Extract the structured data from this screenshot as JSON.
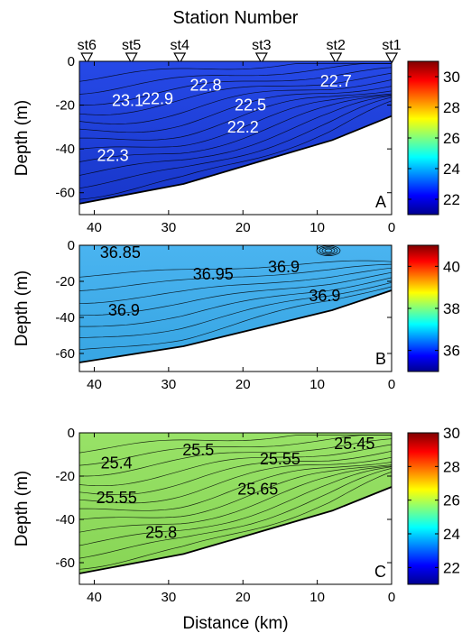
{
  "figure": {
    "top_label": "Station Number",
    "x_label": "Distance (km)"
  },
  "stations": [
    {
      "name": "st6",
      "distance": 41
    },
    {
      "name": "st5",
      "distance": 35
    },
    {
      "name": "st4",
      "distance": 28.5
    },
    {
      "name": "st3",
      "distance": 17.5
    },
    {
      "name": "st2",
      "distance": 7.5
    },
    {
      "name": "st1",
      "distance": 0
    }
  ],
  "chart_data": [
    {
      "type": "contour",
      "panel": "A",
      "ylabel": "Depth (m)",
      "xlim": [
        42,
        0
      ],
      "ylim": [
        -70,
        0
      ],
      "xticks": [
        40,
        30,
        20,
        10,
        0
      ],
      "yticks": [
        0,
        -20,
        -40,
        -60
      ],
      "bottom_profile": [
        [
          42,
          -65
        ],
        [
          28,
          -56
        ],
        [
          8,
          -36
        ],
        [
          0,
          -25
        ]
      ],
      "colorbar": {
        "min": 21,
        "max": 31,
        "ticks": [
          22,
          24,
          26,
          28,
          30
        ]
      },
      "fill_color": "#1b3fe6",
      "contour_labels": [
        {
          "text": "23.1",
          "x": 35.5,
          "y": -18
        },
        {
          "text": "22.9",
          "x": 31.5,
          "y": -17
        },
        {
          "text": "22.8",
          "x": 25,
          "y": -11
        },
        {
          "text": "22.7",
          "x": 7.5,
          "y": -9
        },
        {
          "text": "22.5",
          "x": 19,
          "y": -20
        },
        {
          "text": "22.2",
          "x": 20,
          "y": -30
        },
        {
          "text": "22.3",
          "x": 37.5,
          "y": -43
        }
      ]
    },
    {
      "type": "contour",
      "panel": "B",
      "ylabel": "Depth (m)",
      "xlim": [
        42,
        0
      ],
      "ylim": [
        -70,
        0
      ],
      "xticks": [
        40,
        30,
        20,
        10,
        0
      ],
      "yticks": [
        0,
        -20,
        -40,
        -60
      ],
      "bottom_profile": [
        [
          42,
          -65
        ],
        [
          28,
          -56
        ],
        [
          8,
          -36
        ],
        [
          0,
          -25
        ]
      ],
      "colorbar": {
        "min": 35,
        "max": 41,
        "ticks": [
          36,
          38,
          40
        ]
      },
      "fill_color": "#3aaeef",
      "contour_labels": [
        {
          "text": "36.85",
          "x": 36.5,
          "y": -4
        },
        {
          "text": "36.95",
          "x": 24,
          "y": -16
        },
        {
          "text": "36.9",
          "x": 14.5,
          "y": -12
        },
        {
          "text": "36.9",
          "x": 36,
          "y": -36
        },
        {
          "text": "36.9",
          "x": 9,
          "y": -28
        }
      ]
    },
    {
      "type": "contour",
      "panel": "C",
      "ylabel": "Depth (m)",
      "xlim": [
        42,
        0
      ],
      "ylim": [
        -70,
        0
      ],
      "xticks": [
        40,
        30,
        20,
        10,
        0
      ],
      "yticks": [
        0,
        -20,
        -40,
        -60
      ],
      "bottom_profile": [
        [
          42,
          -65
        ],
        [
          28,
          -56
        ],
        [
          8,
          -36
        ],
        [
          0,
          -25
        ]
      ],
      "colorbar": {
        "min": 21,
        "max": 30,
        "ticks": [
          22,
          24,
          26,
          28,
          30
        ]
      },
      "fill_color": "#8fe05a",
      "contour_labels": [
        {
          "text": "25.4",
          "x": 37,
          "y": -14
        },
        {
          "text": "25.5",
          "x": 26,
          "y": -8
        },
        {
          "text": "25.55",
          "x": 15,
          "y": -12
        },
        {
          "text": "25.45",
          "x": 5,
          "y": -5
        },
        {
          "text": "25.55",
          "x": 37,
          "y": -30
        },
        {
          "text": "25.65",
          "x": 18,
          "y": -26
        },
        {
          "text": "25.8",
          "x": 31,
          "y": -46
        }
      ]
    }
  ]
}
